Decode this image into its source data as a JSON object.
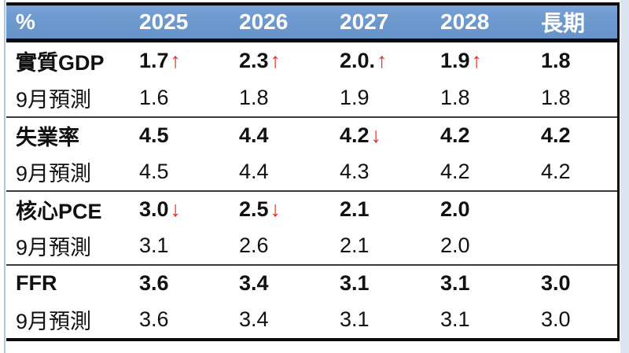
{
  "colors": {
    "header_bg": "#6F9BD1",
    "header_text": "#FFFFFF",
    "arrow_red": "#DD2F1F",
    "border_black": "#0B0B0B",
    "separator": "#3B3B3B",
    "left_accent": "#A9C6E8",
    "right_strip": "#DBE5F2"
  },
  "table": {
    "header": {
      "col0": "%",
      "cols": [
        "2025",
        "2026",
        "2027",
        "2028",
        "長期"
      ]
    },
    "rows": [
      {
        "label": "實質GDP",
        "cells": [
          {
            "v": "1.7",
            "arrow": "↑"
          },
          {
            "v": "2.3",
            "arrow": "↑"
          },
          {
            "v": "2.0.",
            "arrow": "↑"
          },
          {
            "v": "1.9",
            "arrow": "↑"
          },
          {
            "v": "1.8"
          }
        ]
      },
      {
        "label": "9月預測",
        "cells": [
          {
            "v": "1.6"
          },
          {
            "v": "1.8"
          },
          {
            "v": "1.9"
          },
          {
            "v": "1.8"
          },
          {
            "v": "1.8"
          }
        ]
      },
      {
        "label": "失業率",
        "cells": [
          {
            "v": "4.5"
          },
          {
            "v": "4.4"
          },
          {
            "v": "4.2",
            "arrow": "↓"
          },
          {
            "v": "4.2"
          },
          {
            "v": "4.2"
          }
        ]
      },
      {
        "label": "9月預測",
        "cells": [
          {
            "v": "4.5"
          },
          {
            "v": "4.4"
          },
          {
            "v": "4.3"
          },
          {
            "v": "4.2"
          },
          {
            "v": "4.2"
          }
        ]
      },
      {
        "label": "核心PCE",
        "cells": [
          {
            "v": "3.0",
            "arrow": "↓"
          },
          {
            "v": "2.5",
            "arrow": "↓"
          },
          {
            "v": "2.1"
          },
          {
            "v": "2.0"
          },
          {
            "v": ""
          }
        ]
      },
      {
        "label": "9月預測",
        "cells": [
          {
            "v": "3.1"
          },
          {
            "v": "2.6"
          },
          {
            "v": "2.1"
          },
          {
            "v": "2.0"
          },
          {
            "v": ""
          }
        ]
      },
      {
        "label": "FFR",
        "cells": [
          {
            "v": "3.6"
          },
          {
            "v": "3.4"
          },
          {
            "v": "3.1"
          },
          {
            "v": "3.1"
          },
          {
            "v": "3.0"
          }
        ]
      },
      {
        "label": "9月預測",
        "cells": [
          {
            "v": "3.6"
          },
          {
            "v": "3.4"
          },
          {
            "v": "3.1"
          },
          {
            "v": "3.1"
          },
          {
            "v": "3.0"
          }
        ]
      }
    ]
  },
  "chart_data": {
    "type": "table",
    "title": "",
    "columns": [
      "%",
      "2025",
      "2026",
      "2027",
      "2028",
      "長期"
    ],
    "rows": [
      [
        "實質GDP",
        "1.7↑",
        "2.3↑",
        "2.0.↑",
        "1.9↑",
        "1.8"
      ],
      [
        "9月預測",
        "1.6",
        "1.8",
        "1.9",
        "1.8",
        "1.8"
      ],
      [
        "失業率",
        "4.5",
        "4.4",
        "4.2↓",
        "4.2",
        "4.2"
      ],
      [
        "9月預測",
        "4.5",
        "4.4",
        "4.3",
        "4.2",
        "4.2"
      ],
      [
        "核心PCE",
        "3.0↓",
        "2.5↓",
        "2.1",
        "2.0",
        ""
      ],
      [
        "9月預測",
        "3.1",
        "2.6",
        "2.1",
        "2.0",
        ""
      ],
      [
        "FFR",
        "3.6",
        "3.4",
        "3.1",
        "3.1",
        "3.0"
      ],
      [
        "9月預測",
        "3.6",
        "3.4",
        "3.1",
        "3.1",
        "3.0"
      ]
    ],
    "notes": {
      "bold_rows": [
        0,
        2,
        4,
        6
      ],
      "arrow_up_color": "#DD2F1F",
      "arrow_down_color": "#DD2F1F",
      "header_fill": "#6F9BD1"
    }
  }
}
